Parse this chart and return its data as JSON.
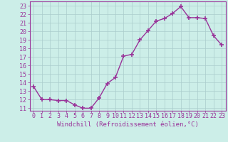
{
  "x": [
    0,
    1,
    2,
    3,
    4,
    5,
    6,
    7,
    8,
    9,
    10,
    11,
    12,
    13,
    14,
    15,
    16,
    17,
    18,
    19,
    20,
    21,
    22,
    23
  ],
  "y": [
    13.5,
    12.0,
    12.0,
    11.9,
    11.9,
    11.4,
    11.0,
    11.0,
    12.2,
    13.9,
    14.6,
    17.1,
    17.3,
    19.0,
    20.1,
    21.2,
    21.5,
    22.1,
    22.9,
    21.6,
    21.6,
    21.5,
    19.5,
    18.4
  ],
  "line_color": "#993399",
  "marker": "+",
  "marker_size": 4,
  "linewidth": 1.0,
  "bg_color": "#cceee8",
  "grid_color": "#aacccc",
  "xlabel": "Windchill (Refroidissement éolien,°C)",
  "xlabel_fontsize": 6.5,
  "ylabel_ticks": [
    11,
    12,
    13,
    14,
    15,
    16,
    17,
    18,
    19,
    20,
    21,
    22,
    23
  ],
  "xlim": [
    -0.5,
    23.5
  ],
  "ylim": [
    10.7,
    23.5
  ],
  "tick_fontsize": 6.0
}
